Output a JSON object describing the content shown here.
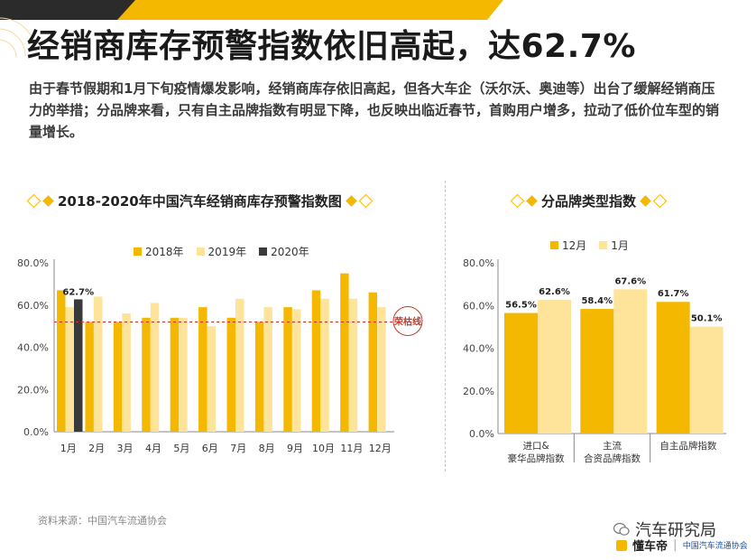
{
  "page": {
    "title": "经销商库存预警指数依旧高起，达62.7%",
    "intro": "由于春节假期和1月下旬疫情爆发影响，经销商库存依旧高起，但各大车企（沃尔沃、奥迪等）出台了缓解经销商压力的举措；分品牌来看，只有自主品牌指数有明显下降，也反映出临近春节，首购用户增多，拉动了低价位车型的销量增长。",
    "source": "资料来源：中国汽车流通协会",
    "wechat_label": "汽车研究局",
    "logo_text": "懂车帝",
    "association_text": "中国汽车流通协会"
  },
  "colors": {
    "y2018": "#f5b800",
    "y2019": "#fde49a",
    "y2020": "#3a3a3a",
    "threshold": "#c0392b",
    "accent": "#f5b800"
  },
  "chart_data": [
    {
      "type": "bar",
      "title": "2018-2020年中国汽车经销商库存预警指数图",
      "categories": [
        "1月",
        "2月",
        "3月",
        "4月",
        "5月",
        "6月",
        "7月",
        "8月",
        "9月",
        "10月",
        "11月",
        "12月"
      ],
      "series": [
        {
          "name": "2018年",
          "values": [
            67,
            52,
            52,
            54,
            54,
            59,
            54,
            52,
            59,
            67,
            75,
            66
          ]
        },
        {
          "name": "2019年",
          "values": [
            59,
            64,
            56,
            61,
            54,
            50,
            63,
            59,
            58,
            63,
            63,
            59
          ]
        },
        {
          "name": "2020年",
          "values": [
            62.7,
            null,
            null,
            null,
            null,
            null,
            null,
            null,
            null,
            null,
            null,
            null
          ]
        }
      ],
      "data_labels": [
        {
          "series": "2020年",
          "category": "1月",
          "text": "62.7%"
        }
      ],
      "threshold": {
        "value": 52,
        "label": "荣枯线"
      },
      "ylim": [
        0,
        80
      ],
      "yticks": [
        "0.0%",
        "20.0%",
        "40.0%",
        "60.0%",
        "80.0%"
      ],
      "legend_position": "top"
    },
    {
      "type": "bar",
      "title": "分品牌类型指数",
      "categories": [
        "进口&\n豪华品牌指数",
        "主流\n合资品牌指数",
        "自主品牌指数"
      ],
      "series": [
        {
          "name": "12月",
          "values": [
            56.5,
            58.4,
            61.7
          ]
        },
        {
          "name": "1月",
          "values": [
            62.6,
            67.6,
            50.1
          ]
        }
      ],
      "data_labels": [
        [
          "56.5%",
          "58.4%",
          "61.7%"
        ],
        [
          "62.6%",
          "67.6%",
          "50.1%"
        ]
      ],
      "ylim": [
        0,
        80
      ],
      "yticks": [
        "0.0%",
        "20.0%",
        "40.0%",
        "60.0%",
        "80.0%"
      ],
      "legend_position": "top"
    }
  ]
}
